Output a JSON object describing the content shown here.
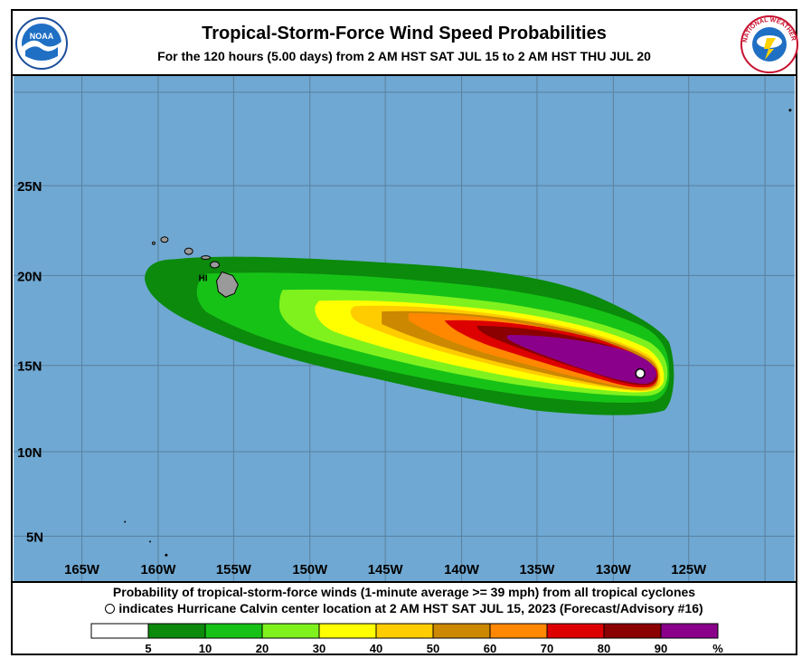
{
  "header": {
    "title": "Tropical-Storm-Force Wind Speed Probabilities",
    "subtitle": "For the 120 hours (5.00 days) from 2 AM HST SAT JUL 15 to 2 AM HST THU JUL 20"
  },
  "logos": {
    "left": {
      "text": "NOAA",
      "icon": "noaa-logo-icon"
    },
    "right": {
      "text": "NATIONAL WEATHER SERVICE",
      "icon": "nws-logo-icon"
    }
  },
  "map": {
    "ocean_color": "#6fa8d2",
    "land_color": "#9a9a9a",
    "lon_labels": [
      "165W",
      "160W",
      "155W",
      "150W",
      "145W",
      "140W",
      "135W",
      "130W",
      "125W"
    ],
    "lat_labels": [
      "25N",
      "20N",
      "15N",
      "10N",
      "5N"
    ],
    "island_label": "HI",
    "storm_center": {
      "name": "Hurricane Calvin",
      "lon": -128.2,
      "lat": 14.5
    }
  },
  "footer": {
    "line1": "Probability of tropical-storm-force winds (1-minute average >= 39 mph) from all tropical cyclones",
    "line2": "indicates Hurricane Calvin center location at 2 AM HST SAT JUL 15, 2023 (Forecast/Advisory #16)"
  },
  "legend": {
    "colors": [
      "#ffffff",
      "#0b8a0b",
      "#17c217",
      "#7ff21e",
      "#ffff00",
      "#ffcc00",
      "#cc8800",
      "#ff8800",
      "#dd0000",
      "#8b0000",
      "#8b008b"
    ],
    "labels": [
      "5",
      "10",
      "20",
      "30",
      "40",
      "50",
      "60",
      "70",
      "80",
      "90",
      "%"
    ]
  }
}
